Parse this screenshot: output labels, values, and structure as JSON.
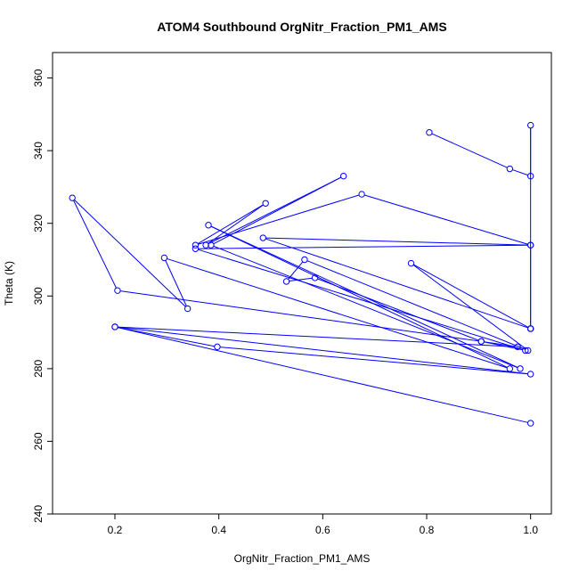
{
  "chart_data": {
    "type": "line",
    "title": "ATOM4 Southbound OrgNitr_Fraction_PM1_AMS",
    "xlabel": "OrgNitr_Fraction_PM1_AMS",
    "ylabel": "Theta (K)",
    "xlim": [
      0.08,
      1.04
    ],
    "ylim": [
      240,
      367
    ],
    "xticks": [
      0.2,
      0.4,
      0.6,
      0.8,
      1.0
    ],
    "xtick_labels": [
      "0.2",
      "0.4",
      "0.6",
      "0.8",
      "1.0"
    ],
    "yticks": [
      240,
      260,
      280,
      300,
      320,
      340,
      360
    ],
    "ytick_labels": [
      "240",
      "260",
      "280",
      "300",
      "320",
      "340",
      "360"
    ],
    "series_color": "#0000ff",
    "marker": "open-circle",
    "grid": false,
    "series": [
      {
        "x": [
          0.805,
          0.96,
          1.0,
          1.0,
          1.0,
          1.0,
          1.0,
          0.485,
          1.0,
          0.77,
          0.995,
          0.565,
          0.53,
          0.585,
          0.905,
          0.99,
          0.355,
          1.0,
          0.675,
          0.355,
          0.49,
          0.375,
          0.64,
          0.385,
          0.98,
          0.38,
          0.96,
          0.295,
          0.34,
          0.118,
          0.205,
          0.905,
          0.975,
          0.2,
          0.397,
          1.0,
          0.2,
          1.0
        ],
        "y": [
          345,
          335,
          333,
          347,
          291,
          291,
          314,
          316,
          291,
          309,
          285,
          310,
          304,
          305,
          287.5,
          285,
          313,
          314,
          328,
          314,
          325.5,
          314,
          333,
          314,
          280,
          319.5,
          280,
          310.5,
          296.5,
          327,
          301.5,
          287.5,
          286,
          291.5,
          286,
          278.5,
          291.5,
          265
        ]
      }
    ]
  }
}
